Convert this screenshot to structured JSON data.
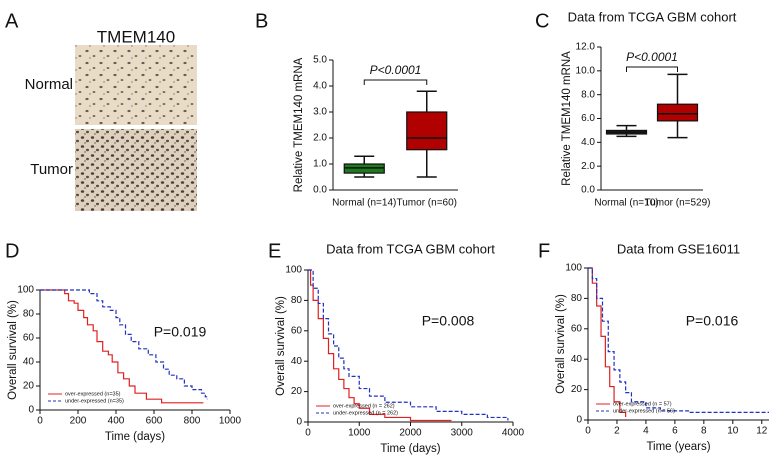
{
  "chart_data": [
    {
      "type": "image",
      "panel": "A",
      "title": "TMEM140",
      "labels": [
        "Normal",
        "Tumor"
      ]
    },
    {
      "type": "box",
      "panel": "B",
      "ylabel": "Relative TMEM140 mRNA",
      "annotation": "P<0.0001",
      "categories": [
        "Normal (n=14)",
        "Tumor (n=60)"
      ],
      "colors": [
        "#1e7a1e",
        "#b00000"
      ],
      "min": [
        0.5,
        0.5
      ],
      "q1": [
        0.65,
        1.55
      ],
      "median": [
        0.85,
        2.0
      ],
      "q3": [
        1.0,
        3.0
      ],
      "max": [
        1.3,
        3.8
      ],
      "ylim": [
        0,
        5
      ],
      "yticks": [
        {
          "value": 0,
          "label": "0.0"
        },
        {
          "value": 1,
          "label": "1.0"
        },
        {
          "value": 2,
          "label": "2.0"
        },
        {
          "value": 3,
          "label": "3.0"
        },
        {
          "value": 4,
          "label": "4.0"
        },
        {
          "value": 5,
          "label": "5.0"
        }
      ]
    },
    {
      "type": "box",
      "panel": "C",
      "title": "Data from TCGA GBM cohort",
      "ylabel": "Relative TMEM140 mRNA",
      "annotation": "P<0.0001",
      "categories": [
        "Normal (n=10)",
        "Tumor (n=529)"
      ],
      "colors": [
        "#1e1e1e",
        "#b00000"
      ],
      "min": [
        4.5,
        4.4
      ],
      "q1": [
        4.7,
        5.8
      ],
      "median": [
        4.85,
        6.4
      ],
      "q3": [
        5.0,
        7.2
      ],
      "max": [
        5.4,
        9.7
      ],
      "ylim": [
        0,
        12
      ],
      "yticks": [
        {
          "value": 0,
          "label": "0.0"
        },
        {
          "value": 2,
          "label": "2.0"
        },
        {
          "value": 4,
          "label": "4.0"
        },
        {
          "value": 6,
          "label": "6.0"
        },
        {
          "value": 8,
          "label": "8.0"
        },
        {
          "value": 10,
          "label": "10.0"
        },
        {
          "value": 12,
          "label": "12.0"
        }
      ]
    },
    {
      "type": "survival",
      "panel": "D",
      "xlabel": "Time (days)",
      "ylabel": "Overall survival (%)",
      "annotation": "P=0.019",
      "xlim": [
        0,
        1000
      ],
      "xticks": [
        0,
        200,
        400,
        600,
        800,
        1000
      ],
      "ylim": [
        0,
        100
      ],
      "yticks": [
        0,
        20,
        40,
        60,
        80,
        100
      ],
      "series": [
        {
          "name": "over-expressed (n=35)",
          "color": "#e02020",
          "style": "solid",
          "x": [
            0,
            130,
            150,
            180,
            200,
            230,
            250,
            280,
            300,
            330,
            360,
            380,
            410,
            440,
            470,
            500,
            560,
            640,
            860
          ],
          "values": [
            100,
            97,
            91,
            89,
            83,
            77,
            71,
            66,
            57,
            49,
            46,
            40,
            31,
            26,
            20,
            14,
            9,
            6,
            6
          ]
        },
        {
          "name": "under-expressed (n=35)",
          "color": "#2030c0",
          "style": "dashed",
          "x": [
            0,
            260,
            300,
            330,
            370,
            400,
            420,
            450,
            480,
            520,
            570,
            610,
            650,
            680,
            720,
            760,
            800,
            850,
            870,
            880
          ],
          "values": [
            100,
            97,
            91,
            86,
            83,
            77,
            71,
            63,
            57,
            51,
            46,
            40,
            34,
            29,
            26,
            20,
            17,
            14,
            11,
            9
          ]
        }
      ]
    },
    {
      "type": "survival",
      "panel": "E",
      "title": "Data from TCGA GBM cohort",
      "xlabel": "Time (days)",
      "ylabel": "Overall survival (%)",
      "annotation": "P=0.008",
      "xlim": [
        0,
        4000
      ],
      "xticks": [
        0,
        1000,
        2000,
        3000,
        4000
      ],
      "ylim": [
        0,
        100
      ],
      "yticks": [
        0,
        20,
        40,
        60,
        80,
        100
      ],
      "series": [
        {
          "name": "over-expressed (n = 262)",
          "color": "#e02020",
          "style": "solid",
          "x": [
            0,
            50,
            100,
            200,
            300,
            400,
            500,
            600,
            700,
            800,
            900,
            1000,
            1200,
            1500,
            2000,
            2800
          ],
          "values": [
            100,
            90,
            80,
            68,
            55,
            45,
            35,
            28,
            22,
            16,
            12,
            9,
            5,
            3,
            1,
            1
          ]
        },
        {
          "name": "under-expressed (n = 262)",
          "color": "#2030c0",
          "style": "dashed",
          "x": [
            0,
            100,
            200,
            300,
            400,
            500,
            600,
            700,
            800,
            1000,
            1200,
            1500,
            2000,
            2500,
            3000,
            3500,
            3900
          ],
          "values": [
            100,
            88,
            78,
            68,
            58,
            50,
            42,
            35,
            30,
            22,
            17,
            13,
            10,
            7,
            5,
            3,
            1
          ]
        }
      ]
    },
    {
      "type": "survival",
      "panel": "F",
      "title": "Data from GSE16011",
      "xlabel": "Time (years)",
      "ylabel": "Overall survival (%)",
      "annotation": "P=0.016",
      "xlim": [
        0,
        12.5
      ],
      "xticks": [
        0,
        2,
        4,
        6,
        8,
        10,
        12
      ],
      "ylim": [
        0,
        100
      ],
      "yticks": [
        0,
        20,
        40,
        60,
        80,
        100
      ],
      "series": [
        {
          "name": "over-expressed (n = 57)",
          "color": "#e02020",
          "style": "solid",
          "x": [
            0,
            0.3,
            0.6,
            0.9,
            1.2,
            1.5,
            1.8,
            2.2,
            2.6
          ],
          "values": [
            100,
            90,
            75,
            55,
            35,
            22,
            12,
            5,
            2
          ]
        },
        {
          "name": "under-expressed (n = 56)",
          "color": "#2030c0",
          "style": "dashed",
          "x": [
            0,
            0.3,
            0.6,
            1,
            1.4,
            1.8,
            2.2,
            2.6,
            3,
            4,
            5,
            7,
            12.5
          ],
          "values": [
            100,
            93,
            80,
            65,
            45,
            33,
            25,
            18,
            12,
            8,
            6,
            5,
            5
          ]
        }
      ]
    }
  ]
}
